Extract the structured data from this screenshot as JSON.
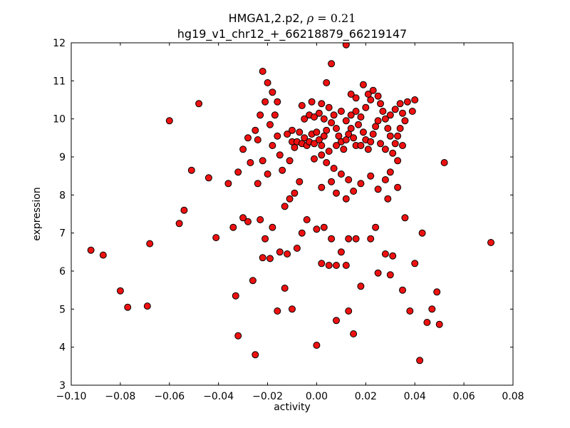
{
  "figure": {
    "title_prefix": "HMGA1,2.p2, ",
    "title_rho": "ρ",
    "title_math_rest": " = 0.21",
    "title_line2": "hg19_v1_chr12_+_66218879_66219147",
    "xlabel": "activity",
    "ylabel": "expression"
  },
  "chart_data": {
    "type": "scatter",
    "title": "HMGA1,2.p2, ρ = 0.21",
    "subtitle": "hg19_v1_chr12_+_66218879_66219147",
    "xlabel": "activity",
    "ylabel": "expression",
    "xlim": [
      -0.1,
      0.08
    ],
    "ylim": [
      3,
      12
    ],
    "grid": false,
    "legend": null,
    "xticks": [
      -0.1,
      -0.08,
      -0.06,
      -0.04,
      -0.02,
      0.0,
      0.02,
      0.04,
      0.06,
      0.08
    ],
    "xtick_labels": [
      "−0.10",
      "−0.08",
      "−0.06",
      "−0.04",
      "−0.02",
      "0.00",
      "0.02",
      "0.04",
      "0.06",
      "0.08"
    ],
    "yticks": [
      3,
      4,
      5,
      6,
      7,
      8,
      9,
      10,
      11,
      12
    ],
    "ytick_labels": [
      "3",
      "4",
      "5",
      "6",
      "7",
      "8",
      "9",
      "10",
      "11",
      "12"
    ],
    "colors": {
      "marker_face": "#ee1111",
      "marker_edge": "#000000",
      "frame": "#000000",
      "background": "#ffffff"
    },
    "marker": {
      "radius_px": 4.5,
      "edge_width": 1
    },
    "points": [
      [
        -0.092,
        6.55
      ],
      [
        -0.087,
        6.42
      ],
      [
        -0.08,
        5.48
      ],
      [
        -0.077,
        5.05
      ],
      [
        -0.069,
        5.08
      ],
      [
        -0.068,
        6.72
      ],
      [
        -0.06,
        9.95
      ],
      [
        -0.048,
        10.4
      ],
      [
        -0.051,
        8.65
      ],
      [
        -0.054,
        7.6
      ],
      [
        -0.056,
        7.25
      ],
      [
        -0.044,
        8.45
      ],
      [
        -0.041,
        6.88
      ],
      [
        -0.036,
        8.3
      ],
      [
        -0.032,
        8.6
      ],
      [
        -0.034,
        7.15
      ],
      [
        -0.03,
        7.4
      ],
      [
        -0.028,
        7.3
      ],
      [
        -0.033,
        5.35
      ],
      [
        -0.032,
        4.3
      ],
      [
        -0.025,
        3.8
      ],
      [
        -0.026,
        5.75
      ],
      [
        -0.022,
        6.35
      ],
      [
        -0.019,
        6.33
      ],
      [
        -0.021,
        6.85
      ],
      [
        -0.023,
        7.35
      ],
      [
        -0.018,
        7.15
      ],
      [
        -0.024,
        8.3
      ],
      [
        -0.02,
        8.55
      ],
      [
        -0.022,
        8.9
      ],
      [
        -0.024,
        9.45
      ],
      [
        -0.025,
        9.7
      ],
      [
        -0.023,
        10.1
      ],
      [
        -0.021,
        10.45
      ],
      [
        -0.022,
        11.25
      ],
      [
        -0.02,
        10.95
      ],
      [
        -0.018,
        10.7
      ],
      [
        -0.016,
        10.45
      ],
      [
        -0.017,
        10.1
      ],
      [
        -0.019,
        9.85
      ],
      [
        -0.016,
        9.55
      ],
      [
        -0.018,
        9.3
      ],
      [
        -0.015,
        9.05
      ],
      [
        -0.014,
        8.65
      ],
      [
        -0.013,
        7.7
      ],
      [
        -0.011,
        7.9
      ],
      [
        -0.015,
        6.5
      ],
      [
        -0.012,
        6.45
      ],
      [
        -0.013,
        5.55
      ],
      [
        -0.016,
        4.95
      ],
      [
        -0.01,
        5.0
      ],
      [
        -0.008,
        6.6
      ],
      [
        -0.006,
        7.0
      ],
      [
        -0.004,
        7.35
      ],
      [
        -0.009,
        8.05
      ],
      [
        -0.007,
        8.35
      ],
      [
        -0.011,
        8.9
      ],
      [
        -0.009,
        9.25
      ],
      [
        -0.01,
        9.4
      ],
      [
        -0.008,
        9.4
      ],
      [
        -0.006,
        9.35
      ],
      [
        -0.012,
        9.6
      ],
      [
        -0.01,
        9.7
      ],
      [
        -0.007,
        9.65
      ],
      [
        -0.005,
        9.5
      ],
      [
        -0.004,
        9.3
      ],
      [
        -0.003,
        9.4
      ],
      [
        -0.001,
        9.35
      ],
      [
        -0.002,
        9.6
      ],
      [
        0.0,
        9.65
      ],
      [
        0.001,
        9.45
      ],
      [
        0.002,
        9.3
      ],
      [
        0.003,
        9.55
      ],
      [
        0.004,
        9.7
      ],
      [
        -0.005,
        10.0
      ],
      [
        -0.003,
        10.1
      ],
      [
        -0.001,
        10.05
      ],
      [
        0.001,
        10.15
      ],
      [
        0.003,
        10.0
      ],
      [
        -0.006,
        10.35
      ],
      [
        -0.002,
        10.45
      ],
      [
        0.002,
        10.4
      ],
      [
        0.005,
        10.3
      ],
      [
        0.006,
        11.45
      ],
      [
        0.012,
        11.95
      ],
      [
        0.006,
        9.9
      ],
      [
        0.008,
        9.75
      ],
      [
        0.009,
        9.55
      ],
      [
        0.01,
        9.4
      ],
      [
        0.008,
        9.3
      ],
      [
        0.011,
        9.2
      ],
      [
        0.012,
        9.45
      ],
      [
        0.013,
        9.6
      ],
      [
        0.014,
        9.75
      ],
      [
        0.015,
        9.5
      ],
      [
        0.016,
        9.3
      ],
      [
        0.012,
        9.95
      ],
      [
        0.014,
        10.1
      ],
      [
        0.016,
        10.2
      ],
      [
        0.018,
        10.05
      ],
      [
        0.017,
        9.85
      ],
      [
        0.019,
        9.65
      ],
      [
        0.02,
        9.45
      ],
      [
        0.018,
        9.3
      ],
      [
        0.021,
        9.2
      ],
      [
        0.022,
        9.4
      ],
      [
        0.023,
        9.6
      ],
      [
        0.024,
        9.8
      ],
      [
        0.02,
        10.3
      ],
      [
        0.022,
        10.5
      ],
      [
        0.021,
        10.65
      ],
      [
        0.023,
        10.75
      ],
      [
        0.025,
        10.6
      ],
      [
        0.026,
        10.4
      ],
      [
        0.027,
        10.2
      ],
      [
        0.028,
        10.0
      ],
      [
        0.025,
        9.95
      ],
      [
        0.029,
        9.75
      ],
      [
        0.03,
        9.55
      ],
      [
        0.026,
        9.35
      ],
      [
        0.028,
        9.2
      ],
      [
        0.031,
        9.1
      ],
      [
        0.032,
        9.35
      ],
      [
        0.033,
        9.55
      ],
      [
        0.034,
        9.75
      ],
      [
        0.03,
        10.1
      ],
      [
        0.032,
        10.25
      ],
      [
        0.034,
        10.4
      ],
      [
        0.035,
        10.15
      ],
      [
        0.036,
        9.95
      ],
      [
        0.033,
        8.9
      ],
      [
        0.035,
        9.3
      ],
      [
        0.037,
        10.45
      ],
      [
        0.039,
        10.2
      ],
      [
        0.019,
        10.9
      ],
      [
        0.04,
        10.5
      ],
      [
        0.016,
        10.55
      ],
      [
        0.014,
        10.65
      ],
      [
        0.01,
        10.2
      ],
      [
        0.007,
        10.1
      ],
      [
        0.005,
        9.15
      ],
      [
        0.002,
        9.05
      ],
      [
        -0.001,
        8.95
      ],
      [
        0.004,
        8.85
      ],
      [
        0.007,
        8.7
      ],
      [
        0.01,
        8.55
      ],
      [
        0.013,
        8.4
      ],
      [
        0.006,
        8.35
      ],
      [
        0.002,
        8.2
      ],
      [
        0.008,
        8.05
      ],
      [
        0.012,
        7.9
      ],
      [
        0.015,
        8.1
      ],
      [
        0.018,
        8.3
      ],
      [
        0.022,
        8.5
      ],
      [
        0.025,
        8.15
      ],
      [
        0.028,
        8.4
      ],
      [
        0.03,
        8.6
      ],
      [
        0.033,
        8.2
      ],
      [
        0.029,
        7.9
      ],
      [
        0.0,
        7.1
      ],
      [
        0.003,
        7.15
      ],
      [
        0.006,
        6.85
      ],
      [
        0.01,
        6.5
      ],
      [
        0.013,
        6.85
      ],
      [
        0.016,
        6.85
      ],
      [
        0.022,
        6.85
      ],
      [
        0.002,
        6.2
      ],
      [
        0.005,
        6.15
      ],
      [
        0.008,
        6.15
      ],
      [
        0.012,
        6.15
      ],
      [
        0.0,
        4.05
      ],
      [
        0.015,
        4.35
      ],
      [
        0.013,
        4.95
      ],
      [
        0.008,
        4.7
      ],
      [
        0.018,
        5.6
      ],
      [
        0.025,
        5.95
      ],
      [
        0.028,
        6.45
      ],
      [
        0.031,
        6.4
      ],
      [
        0.035,
        5.5
      ],
      [
        0.03,
        5.9
      ],
      [
        0.038,
        4.95
      ],
      [
        0.042,
        3.65
      ],
      [
        0.045,
        4.65
      ],
      [
        0.05,
        4.6
      ],
      [
        0.049,
        5.45
      ],
      [
        0.047,
        5.0
      ],
      [
        0.052,
        8.85
      ],
      [
        0.071,
        6.75
      ],
      [
        0.043,
        7.0
      ],
      [
        0.04,
        6.2
      ],
      [
        -0.03,
        9.2
      ],
      [
        -0.028,
        9.5
      ],
      [
        -0.027,
        8.85
      ],
      [
        0.036,
        7.4
      ],
      [
        0.024,
        7.15
      ],
      [
        0.004,
        10.95
      ]
    ]
  }
}
